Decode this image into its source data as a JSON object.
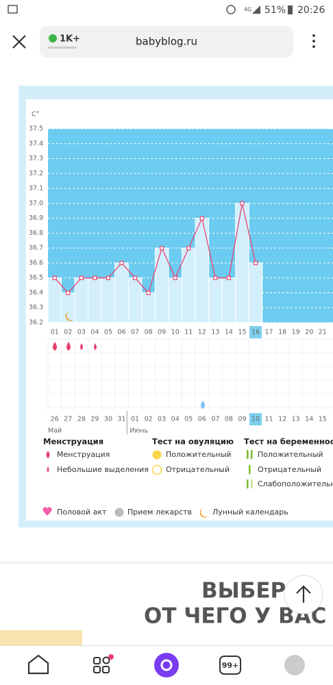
{
  "status_bar": {
    "network": "4G",
    "battery": "51%",
    "time": "20:26"
  },
  "browser": {
    "tab_count": "1K+",
    "url": "babyblog.ru"
  },
  "chart_data": {
    "type": "line",
    "y_label": "C°",
    "categories": [
      "01",
      "02",
      "03",
      "04",
      "05",
      "06",
      "07",
      "08",
      "09",
      "10",
      "11",
      "12",
      "13",
      "14",
      "15",
      "16",
      "17",
      "18",
      "19",
      "20",
      "21"
    ],
    "values": [
      36.5,
      36.4,
      36.5,
      36.5,
      36.5,
      36.6,
      36.5,
      36.4,
      36.7,
      36.5,
      36.7,
      36.9,
      36.5,
      36.5,
      37.0,
      36.6,
      null,
      null,
      null,
      null,
      null
    ],
    "dates": [
      "26",
      "27",
      "28",
      "29",
      "30",
      "31",
      "01",
      "02",
      "03",
      "04",
      "05",
      "06",
      "07",
      "08",
      "09",
      "10",
      "11",
      "12",
      "13",
      "14",
      "15"
    ],
    "date_colors": [
      "#555",
      "#555",
      "#555",
      "#e8436f",
      "#e8436f",
      "#555",
      "#555",
      "#555",
      "#555",
      "#555",
      "#e8436f",
      "#e8436f",
      "#555",
      "#555",
      "#555",
      "#555",
      "#555",
      "#e8436f",
      "#e8436f",
      "#555",
      "#555"
    ],
    "months": [
      "Май",
      "Июнь"
    ],
    "highlight_index": 15,
    "ylim": [
      36.2,
      37.5
    ],
    "yticks": [
      36.2,
      36.3,
      36.4,
      36.5,
      36.6,
      36.7,
      36.8,
      36.9,
      {
        "value": 37,
        "label": "37.0"
      },
      37.1,
      37.2,
      37.3,
      37.4,
      37.5
    ],
    "color": "#e8436f",
    "bar_color": "#d3effc",
    "background": "#6ccbf0",
    "grid": true
  },
  "legend": {
    "menstruation": {
      "title": "Менструация",
      "items": [
        "Менструация",
        "Небольшие выделения"
      ]
    },
    "ovulation": {
      "title": "Тест на овуляцию",
      "items": [
        "Положительный",
        "Отрицательный"
      ]
    },
    "pregnancy": {
      "title": "Тест на беременность",
      "items": [
        "Положительный",
        "Отрицательный",
        "Слабоположительный"
      ]
    },
    "other": [
      "Половой акт",
      "Прием лекарств",
      "Лунный календарь"
    ]
  },
  "ad": {
    "line1": "ВЫБЕР",
    "line2": "ОТ ЧЕГО У ВАС L"
  },
  "nav": {
    "badge": "99+"
  }
}
